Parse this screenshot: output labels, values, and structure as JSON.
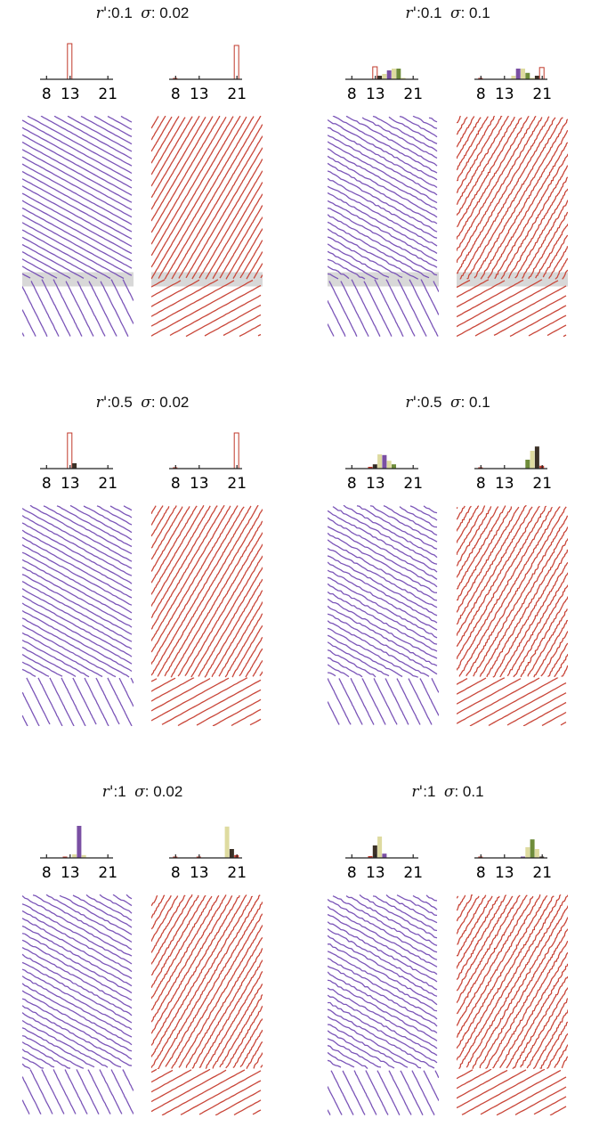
{
  "panels": [
    {
      "r_symbol": "r'",
      "r_value": ":0.1",
      "sigma_symbol": "σ",
      "sigma_value": ": 0.02"
    },
    {
      "r_symbol": "r'",
      "r_value": ":0.1",
      "sigma_symbol": "σ",
      "sigma_value": ": 0.1"
    },
    {
      "r_symbol": "r'",
      "r_value": ":0.5",
      "sigma_symbol": "σ",
      "sigma_value": ": 0.02"
    },
    {
      "r_symbol": "r'",
      "r_value": ":0.5",
      "sigma_symbol": "σ",
      "sigma_value": ": 0.1"
    },
    {
      "r_symbol": "r'",
      "r_value": ":1",
      "sigma_symbol": "σ",
      "sigma_value": ": 0.02"
    },
    {
      "r_symbol": "r'",
      "r_value": ":1",
      "sigma_symbol": "σ",
      "sigma_value": ": 0.1"
    }
  ],
  "colors": {
    "red": "#c0392b",
    "dark": "#3b3127",
    "cream": "#dedba0",
    "purple": "#7a4fa3",
    "olive": "#6e8c3a",
    "purple_lines": "#7b55b8",
    "red_lines": "#c9473a",
    "band": "#d8d8d8"
  },
  "chart_data": [
    {
      "type": "bar",
      "panel": 0,
      "side": "purple",
      "xticks": [
        "8",
        "13",
        "21"
      ],
      "xlim": [
        7,
        22
      ],
      "bars": [
        {
          "x": 13,
          "h": 1.0,
          "color": "red",
          "hollow": true
        }
      ]
    },
    {
      "type": "bar",
      "panel": 0,
      "side": "red",
      "xticks": [
        "8",
        "13",
        "21"
      ],
      "xlim": [
        7,
        22
      ],
      "bars": [
        {
          "x": 8,
          "h": 0.03,
          "color": "red"
        },
        {
          "x": 21,
          "h": 0.95,
          "color": "red",
          "hollow": true
        }
      ]
    },
    {
      "type": "bar",
      "panel": 1,
      "side": "purple",
      "xticks": [
        "8",
        "13",
        "21"
      ],
      "xlim": [
        7,
        22
      ],
      "bars": [
        {
          "x": 13,
          "h": 0.35,
          "color": "red",
          "hollow": true
        },
        {
          "x": 14,
          "h": 0.1,
          "color": "dark"
        },
        {
          "x": 15,
          "h": 0.15,
          "color": "cream"
        },
        {
          "x": 16,
          "h": 0.25,
          "color": "purple"
        },
        {
          "x": 17,
          "h": 0.3,
          "color": "cream"
        },
        {
          "x": 18,
          "h": 0.3,
          "color": "olive"
        },
        {
          "x": 19,
          "h": 0.04,
          "color": "cream"
        }
      ]
    },
    {
      "type": "bar",
      "panel": 1,
      "side": "red",
      "xticks": [
        "8",
        "13",
        "21"
      ],
      "xlim": [
        7,
        22
      ],
      "bars": [
        {
          "x": 8,
          "h": 0.03,
          "color": "red"
        },
        {
          "x": 15,
          "h": 0.1,
          "color": "cream"
        },
        {
          "x": 16,
          "h": 0.3,
          "color": "purple"
        },
        {
          "x": 17,
          "h": 0.3,
          "color": "cream"
        },
        {
          "x": 18,
          "h": 0.18,
          "color": "olive"
        },
        {
          "x": 19,
          "h": 0.04,
          "color": "cream"
        },
        {
          "x": 20,
          "h": 0.1,
          "color": "dark"
        },
        {
          "x": 21,
          "h": 0.33,
          "color": "red",
          "hollow": true
        }
      ]
    },
    {
      "type": "bar",
      "panel": 2,
      "side": "purple",
      "xticks": [
        "8",
        "13",
        "21"
      ],
      "xlim": [
        7,
        22
      ],
      "bars": [
        {
          "x": 13,
          "h": 1.0,
          "color": "red",
          "hollow": true
        },
        {
          "x": 14,
          "h": 0.15,
          "color": "dark"
        }
      ]
    },
    {
      "type": "bar",
      "panel": 2,
      "side": "red",
      "xticks": [
        "8",
        "13",
        "21"
      ],
      "xlim": [
        7,
        22
      ],
      "bars": [
        {
          "x": 8,
          "h": 0.03,
          "color": "red"
        },
        {
          "x": 21,
          "h": 1.0,
          "color": "red",
          "hollow": true
        }
      ]
    },
    {
      "type": "bar",
      "panel": 3,
      "side": "purple",
      "xticks": [
        "8",
        "13",
        "21"
      ],
      "xlim": [
        7,
        22
      ],
      "bars": [
        {
          "x": 12,
          "h": 0.05,
          "color": "red"
        },
        {
          "x": 13,
          "h": 0.12,
          "color": "dark"
        },
        {
          "x": 14,
          "h": 0.4,
          "color": "cream"
        },
        {
          "x": 15,
          "h": 0.38,
          "color": "purple"
        },
        {
          "x": 16,
          "h": 0.22,
          "color": "cream"
        },
        {
          "x": 17,
          "h": 0.12,
          "color": "olive"
        }
      ]
    },
    {
      "type": "bar",
      "panel": 3,
      "side": "red",
      "xticks": [
        "8",
        "13",
        "21"
      ],
      "xlim": [
        7,
        22
      ],
      "bars": [
        {
          "x": 8,
          "h": 0.03,
          "color": "red"
        },
        {
          "x": 18,
          "h": 0.25,
          "color": "olive"
        },
        {
          "x": 19,
          "h": 0.5,
          "color": "cream"
        },
        {
          "x": 20,
          "h": 0.62,
          "color": "dark"
        },
        {
          "x": 21,
          "h": 0.08,
          "color": "red"
        }
      ]
    },
    {
      "type": "bar",
      "panel": 4,
      "side": "purple",
      "xticks": [
        "8",
        "13",
        "21"
      ],
      "xlim": [
        7,
        22
      ],
      "bars": [
        {
          "x": 12,
          "h": 0.03,
          "color": "red"
        },
        {
          "x": 14,
          "h": 0.1,
          "color": "cream"
        },
        {
          "x": 15,
          "h": 0.9,
          "color": "purple"
        },
        {
          "x": 16,
          "h": 0.08,
          "color": "cream"
        }
      ]
    },
    {
      "type": "bar",
      "panel": 4,
      "side": "red",
      "xticks": [
        "8",
        "13",
        "21"
      ],
      "xlim": [
        7,
        22
      ],
      "bars": [
        {
          "x": 8,
          "h": 0.03,
          "color": "red"
        },
        {
          "x": 13,
          "h": 0.02,
          "color": "red"
        },
        {
          "x": 19,
          "h": 0.88,
          "color": "cream"
        },
        {
          "x": 20,
          "h": 0.25,
          "color": "dark"
        },
        {
          "x": 21,
          "h": 0.08,
          "color": "red"
        }
      ]
    },
    {
      "type": "bar",
      "panel": 5,
      "side": "purple",
      "xticks": [
        "8",
        "13",
        "21"
      ],
      "xlim": [
        7,
        22
      ],
      "bars": [
        {
          "x": 12,
          "h": 0.05,
          "color": "red"
        },
        {
          "x": 13,
          "h": 0.35,
          "color": "dark"
        },
        {
          "x": 14,
          "h": 0.6,
          "color": "cream"
        },
        {
          "x": 15,
          "h": 0.12,
          "color": "purple"
        }
      ]
    },
    {
      "type": "bar",
      "panel": 5,
      "side": "red",
      "xticks": [
        "8",
        "13",
        "21"
      ],
      "xlim": [
        7,
        22
      ],
      "bars": [
        {
          "x": 8,
          "h": 0.03,
          "color": "red"
        },
        {
          "x": 17,
          "h": 0.02,
          "color": "purple"
        },
        {
          "x": 18,
          "h": 0.3,
          "color": "cream"
        },
        {
          "x": 19,
          "h": 0.52,
          "color": "olive"
        },
        {
          "x": 20,
          "h": 0.25,
          "color": "cream"
        },
        {
          "x": 21,
          "h": 0.03,
          "color": "dark"
        }
      ]
    }
  ]
}
